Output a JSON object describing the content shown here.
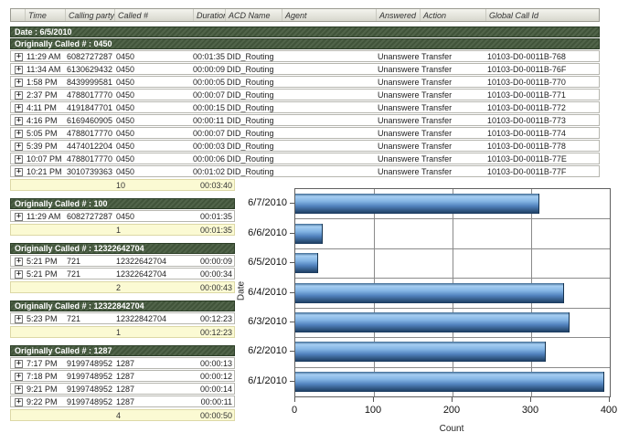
{
  "table": {
    "columns": [
      "",
      "Time",
      "Calling party #",
      "Called #",
      "Duration",
      "ACD Name",
      "Agent",
      "Answered",
      "Action",
      "Global Call Id"
    ],
    "date_band": "Date : 6/5/2010",
    "expand_glyph": "+",
    "groups": [
      {
        "band": "Originally Called # : 0450",
        "full_width": true,
        "rows": [
          {
            "time": "11:29 AM",
            "calling": "6082727287",
            "called": "0450",
            "duration": "00:01:35",
            "acd": "DID_Routing",
            "agent": "",
            "answered": "Unanswered",
            "action": "Transfer",
            "global_id": "10103-D0-0011B-768"
          },
          {
            "time": "11:34 AM",
            "calling": "6130629432",
            "called": "0450",
            "duration": "00:00:09",
            "acd": "DID_Routing",
            "agent": "",
            "answered": "Unanswered",
            "action": "Transfer",
            "global_id": "10103-D0-0011B-76F"
          },
          {
            "time": "1:58 PM",
            "calling": "8439999581",
            "called": "0450",
            "duration": "00:00:05",
            "acd": "DID_Routing",
            "agent": "",
            "answered": "Unanswered",
            "action": "Transfer",
            "global_id": "10103-D0-0011B-770"
          },
          {
            "time": "2:37 PM",
            "calling": "4788017770",
            "called": "0450",
            "duration": "00:00:07",
            "acd": "DID_Routing",
            "agent": "",
            "answered": "Unanswered",
            "action": "Transfer",
            "global_id": "10103-D0-0011B-771"
          },
          {
            "time": "4:11 PM",
            "calling": "4191847701",
            "called": "0450",
            "duration": "00:00:15",
            "acd": "DID_Routing",
            "agent": "",
            "answered": "Unanswered",
            "action": "Transfer",
            "global_id": "10103-D0-0011B-772"
          },
          {
            "time": "4:16 PM",
            "calling": "6169460905",
            "called": "0450",
            "duration": "00:00:11",
            "acd": "DID_Routing",
            "agent": "",
            "answered": "Unanswered",
            "action": "Transfer",
            "global_id": "10103-D0-0011B-773"
          },
          {
            "time": "5:05 PM",
            "calling": "4788017770",
            "called": "0450",
            "duration": "00:00:07",
            "acd": "DID_Routing",
            "agent": "",
            "answered": "Unanswered",
            "action": "Transfer",
            "global_id": "10103-D0-0011B-774"
          },
          {
            "time": "5:39 PM",
            "calling": "4474012204",
            "called": "0450",
            "duration": "00:00:03",
            "acd": "DID_Routing",
            "agent": "",
            "answered": "Unanswered",
            "action": "Transfer",
            "global_id": "10103-D0-0011B-778"
          },
          {
            "time": "10:07 PM",
            "calling": "4788017770",
            "called": "0450",
            "duration": "00:00:06",
            "acd": "DID_Routing",
            "agent": "",
            "answered": "Unanswered",
            "action": "Transfer",
            "global_id": "10103-D0-0011B-77E"
          },
          {
            "time": "10:21 PM",
            "calling": "3010739363",
            "called": "0450",
            "duration": "00:01:02",
            "acd": "DID_Routing",
            "agent": "",
            "answered": "Unanswered",
            "action": "Transfer",
            "global_id": "10103-D0-0011B-77F"
          }
        ],
        "summary": {
          "count": "10",
          "duration": "00:03:40"
        }
      },
      {
        "band": "Originally Called # : 100",
        "full_width": false,
        "rows": [
          {
            "time": "11:29 AM",
            "calling": "6082727287",
            "called": "0450",
            "duration": "00:01:35"
          }
        ],
        "summary": {
          "count": "1",
          "duration": "00:01:35"
        }
      },
      {
        "band": "Originally Called # : 12322642704",
        "full_width": false,
        "rows": [
          {
            "time": "5:21 PM",
            "calling": "721",
            "called": "12322642704",
            "duration": "00:00:09"
          },
          {
            "time": "5:21 PM",
            "calling": "721",
            "called": "12322642704",
            "duration": "00:00:34"
          }
        ],
        "summary": {
          "count": "2",
          "duration": "00:00:43"
        }
      },
      {
        "band": "Originally Called # : 12322842704",
        "full_width": false,
        "rows": [
          {
            "time": "5:23 PM",
            "calling": "721",
            "called": "12322842704",
            "duration": "00:12:23"
          }
        ],
        "summary": {
          "count": "1",
          "duration": "00:12:23"
        }
      },
      {
        "band": "Originally Called # : 1287",
        "full_width": false,
        "rows": [
          {
            "time": "7:17 PM",
            "calling": "9199748952",
            "called": "1287",
            "duration": "00:00:13"
          },
          {
            "time": "7:18 PM",
            "calling": "9199748952",
            "called": "1287",
            "duration": "00:00:12"
          },
          {
            "time": "9:21 PM",
            "calling": "9199748952",
            "called": "1287",
            "duration": "00:00:14"
          },
          {
            "time": "9:22 PM",
            "calling": "9199748952",
            "called": "1287",
            "duration": "00:00:11"
          }
        ],
        "summary": {
          "count": "4",
          "duration": "00:00:50"
        }
      }
    ]
  },
  "chart_data": {
    "type": "bar",
    "orientation": "horizontal",
    "categories": [
      "6/7/2010",
      "6/6/2010",
      "6/5/2010",
      "6/4/2010",
      "6/3/2010",
      "6/2/2010",
      "6/1/2010"
    ],
    "values": [
      309,
      34,
      28,
      341,
      348,
      318,
      392
    ],
    "title": "",
    "xlabel": "Count",
    "ylabel": "Date",
    "xticks": [
      0,
      100,
      200,
      300,
      400
    ],
    "xlim": [
      0,
      400
    ],
    "grid": true,
    "legend": false
  },
  "colors": {
    "group_band_green": "#41543a",
    "summary_yellow": "#fbfad3",
    "bar_blue": "#5182bd",
    "grid_gray": "#8a8a8a"
  }
}
